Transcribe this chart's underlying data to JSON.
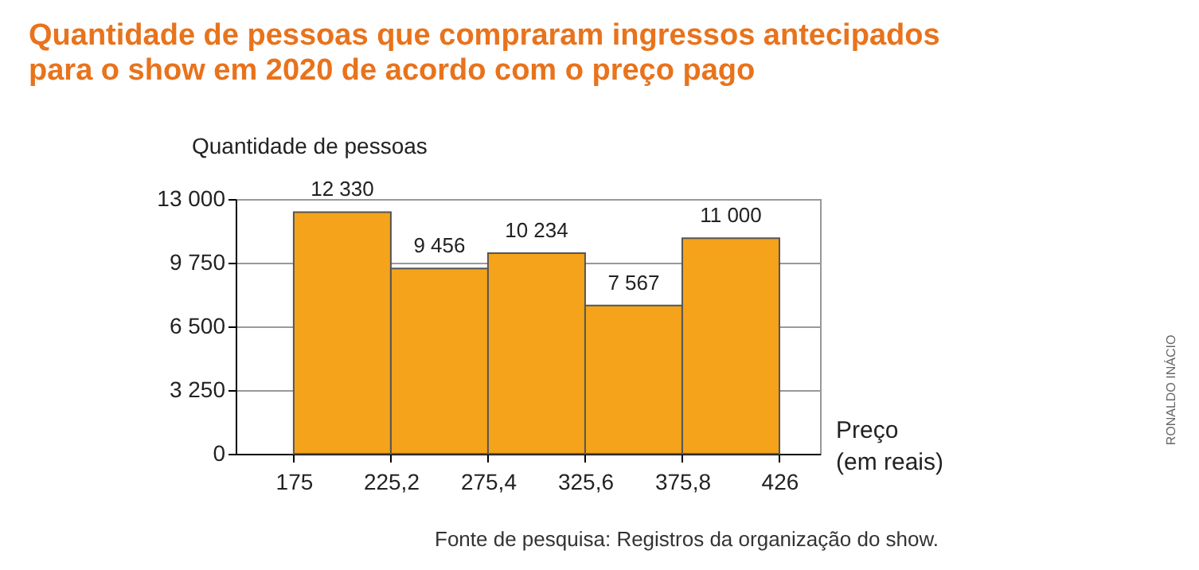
{
  "chart_data": {
    "type": "histogram",
    "title": "Quantidade de pessoas que compraram ingressos antecipados\npara o show em 2020 de acordo com o preço pago",
    "xlabel": "Preço\n(em reais)",
    "ylabel": "Quantidade de pessoas",
    "bins": [
      175,
      225.2,
      275.4,
      325.6,
      375.8,
      426
    ],
    "values": [
      12330,
      9456,
      10234,
      7567,
      11000
    ],
    "value_labels": [
      "12 330",
      "9 456",
      "10 234",
      "7 567",
      "11 000"
    ],
    "color": "#f5a31a",
    "xlim": [
      145,
      447
    ],
    "xticks": [
      175,
      {
        "value": 225.2,
        "label": "225,2"
      },
      {
        "value": 275.4,
        "label": "275,4"
      },
      {
        "value": 325.6,
        "label": "325,6"
      },
      {
        "value": 375.8,
        "label": "375,8"
      },
      426
    ],
    "ylim": [
      0,
      13000
    ],
    "yticks": [
      0,
      {
        "value": 3250,
        "label": "3 250"
      },
      {
        "value": 6500,
        "label": "6 500"
      },
      {
        "value": 9750,
        "label": "9 750"
      },
      {
        "value": 13000,
        "label": "13 000"
      }
    ],
    "grid": "y",
    "annotations": [
      "Fonte de pesquisa: Registros da organização do show.",
      "RONALDO INÁCIO"
    ]
  }
}
